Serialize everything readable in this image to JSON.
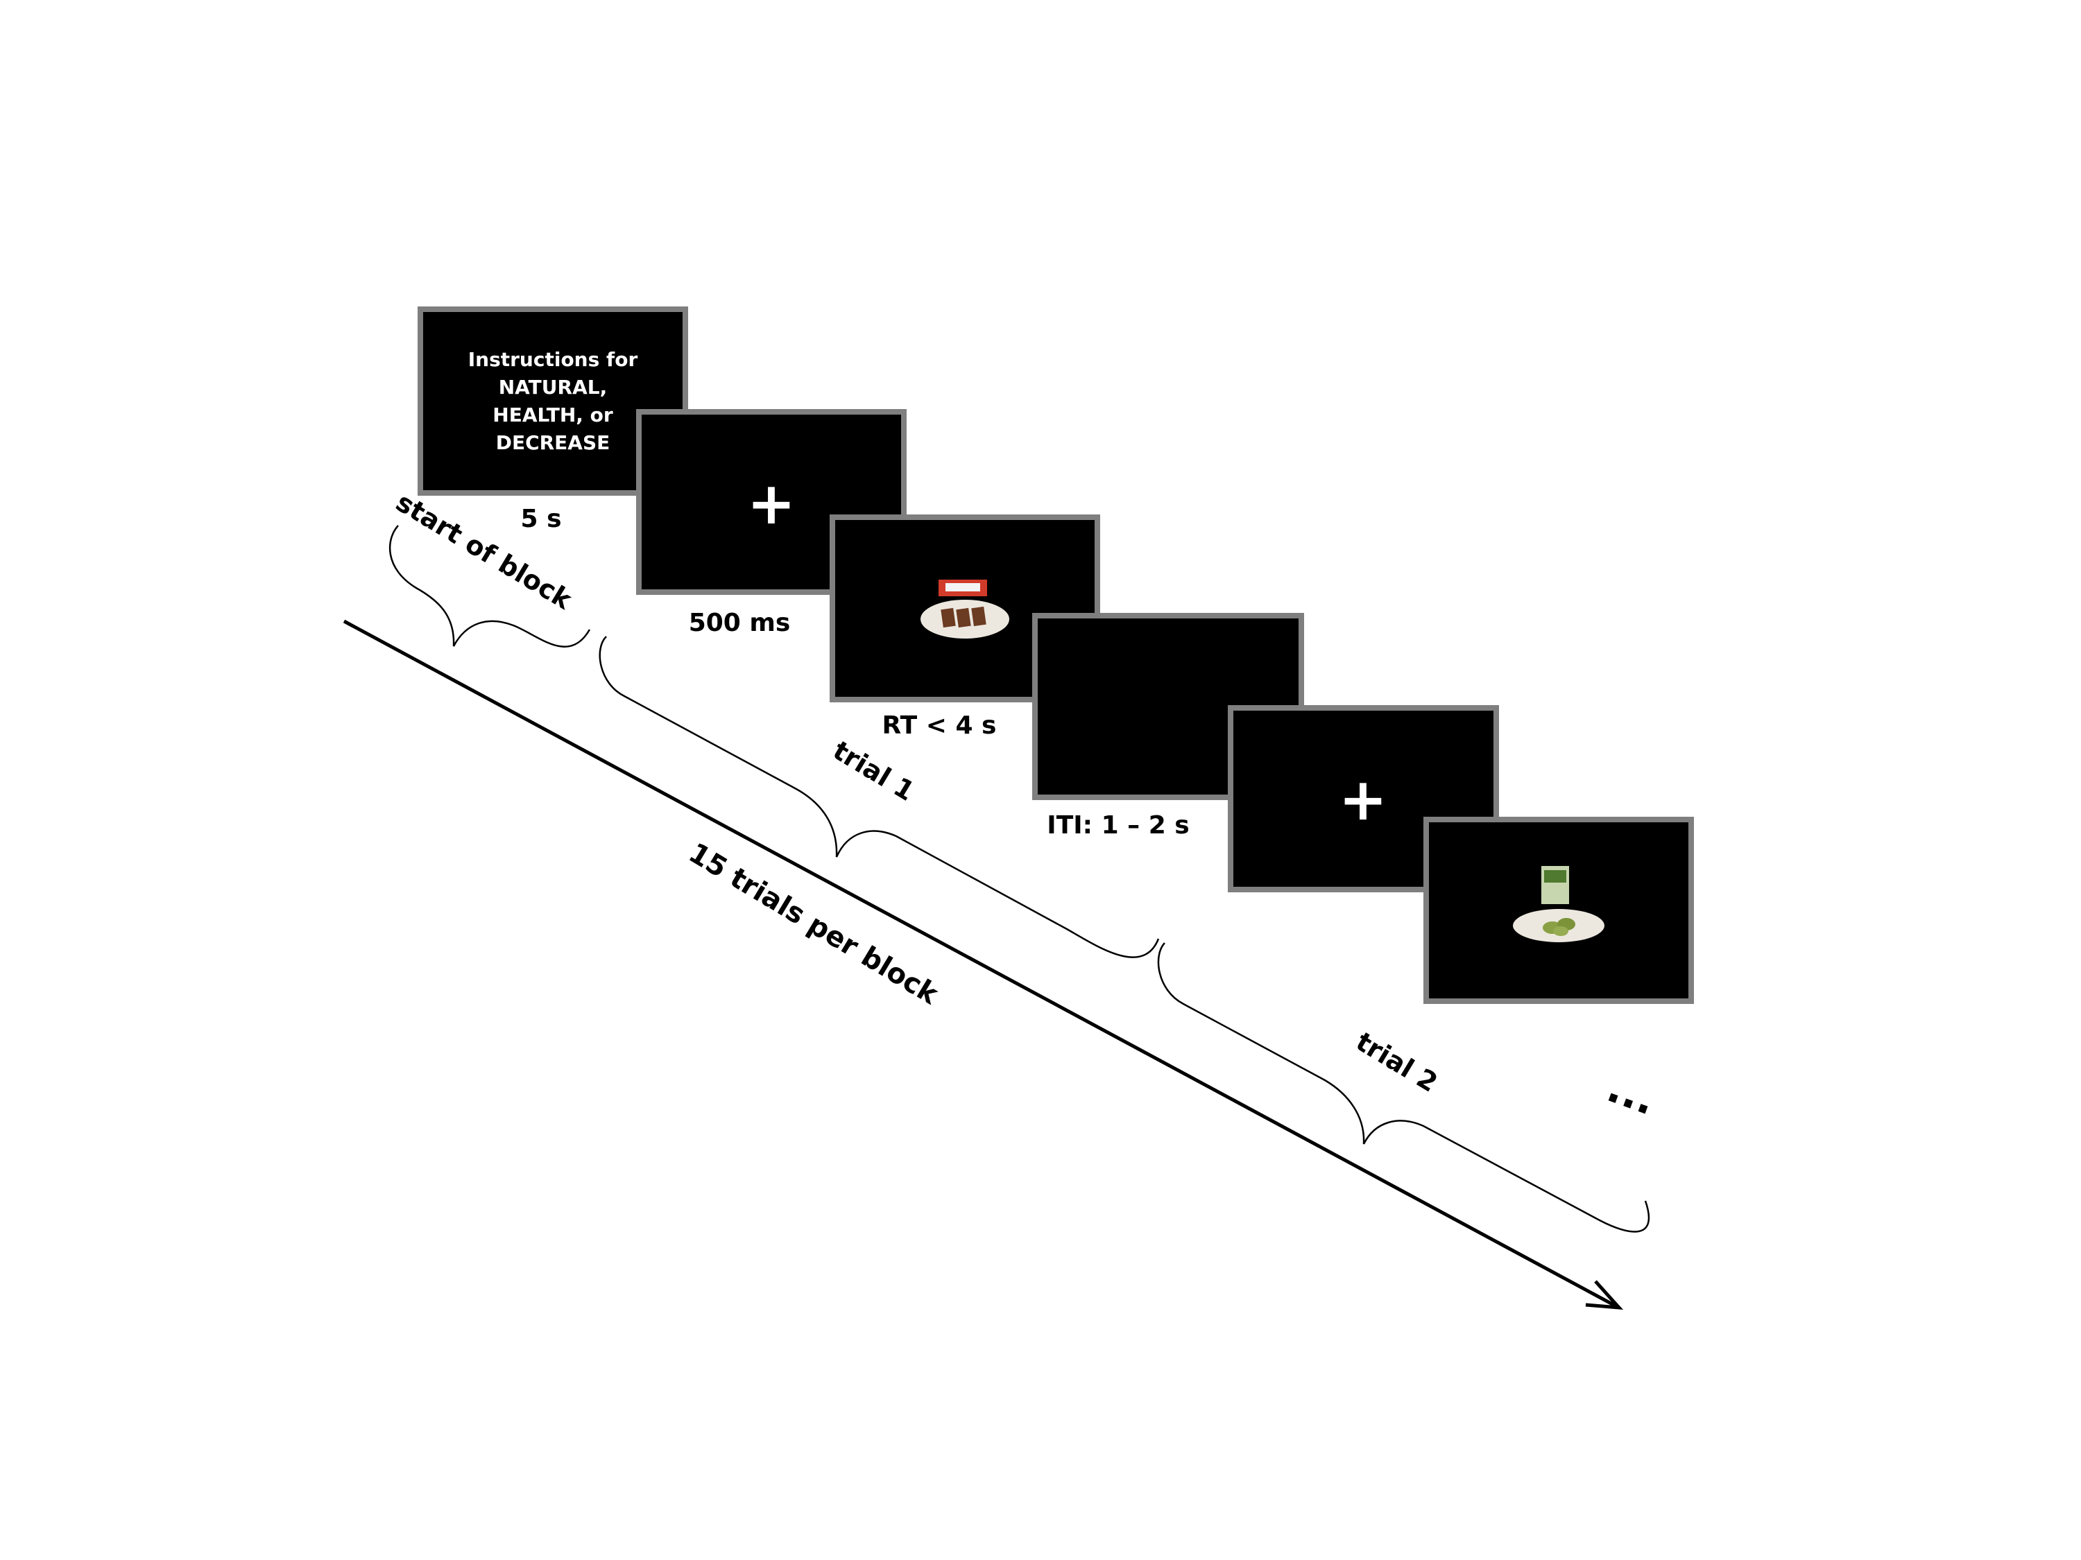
{
  "colors": {
    "background": "#ffffff",
    "screen_fill": "#000000",
    "screen_border": "#7f7f7f",
    "stimulus_text": "#ffffff",
    "annotation": "#000000"
  },
  "screens": {
    "instructions": {
      "lines": [
        "Instructions for",
        "NATURAL,",
        "HEALTH, or",
        "DECREASE"
      ],
      "duration": "5 s"
    },
    "fixation_1": {
      "symbol": "+",
      "duration": "500 ms"
    },
    "food_1": {
      "image": "chocolate-bar-on-plate",
      "duration": "RT < 4 s"
    },
    "iti": {
      "duration": "ITI: 1 – 2 s"
    },
    "fixation_2": {
      "symbol": "+"
    },
    "food_2": {
      "image": "green-snack-on-plate"
    }
  },
  "braces": {
    "start_block": "start of block",
    "trial_1": "trial 1",
    "trial_2": "trial 2"
  },
  "timeline": {
    "label": "15 trials per block"
  },
  "continuation": "..."
}
